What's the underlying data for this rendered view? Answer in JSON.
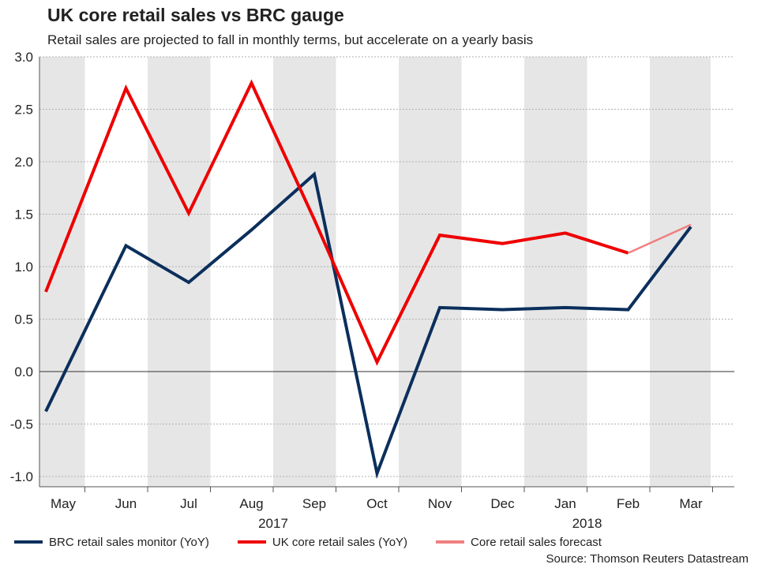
{
  "header": {
    "title": "UK core retail sales vs BRC gauge",
    "subtitle": "Retail sales are projected to fall in monthly terms, but accelerate on a yearly basis"
  },
  "chart_data": {
    "type": "line",
    "title": "UK core retail sales vs BRC gauge",
    "subtitle": "Retail sales are projected to fall in monthly terms, but accelerate on a yearly basis",
    "categories": [
      "May",
      "Jun",
      "Jul",
      "Aug",
      "Sep",
      "Oct",
      "Nov",
      "Dec",
      "Jan",
      "Feb",
      "Mar"
    ],
    "year_labels": [
      {
        "label": "2017",
        "after_category": "Aug"
      },
      {
        "label": "2018",
        "after_category": "Jan"
      }
    ],
    "ylim": [
      -1.0,
      3.0
    ],
    "yticks": [
      -1.0,
      -0.5,
      0.0,
      0.5,
      1.0,
      1.5,
      2.0,
      2.5,
      3.0
    ],
    "ytick_labels": [
      "-1.0",
      "-0.5",
      "0.0",
      "0.5",
      "1.0",
      "1.5",
      "2.0",
      "2.5",
      "3.0"
    ],
    "xlabel": "",
    "ylabel": "",
    "grid": true,
    "shaded_bands": "alternate months",
    "series": [
      {
        "name": "BRC retail sales monitor (YoY)",
        "color": "#0b2f5c",
        "values": [
          -0.38,
          1.2,
          0.85,
          1.35,
          1.88,
          -0.97,
          0.61,
          0.59,
          0.61,
          0.59,
          1.38
        ]
      },
      {
        "name": "UK core retail sales (YoY)",
        "color": "#ee0000",
        "values": [
          0.76,
          2.7,
          1.51,
          2.75,
          1.45,
          0.09,
          1.3,
          1.22,
          1.32,
          1.13,
          null
        ]
      },
      {
        "name": "Core retail sales forecast",
        "color": "#f08080",
        "values": [
          null,
          null,
          null,
          null,
          null,
          null,
          null,
          null,
          null,
          1.13,
          1.4
        ]
      }
    ],
    "legend_position": "bottom",
    "source": "Source: Thomson Reuters Datastream"
  }
}
